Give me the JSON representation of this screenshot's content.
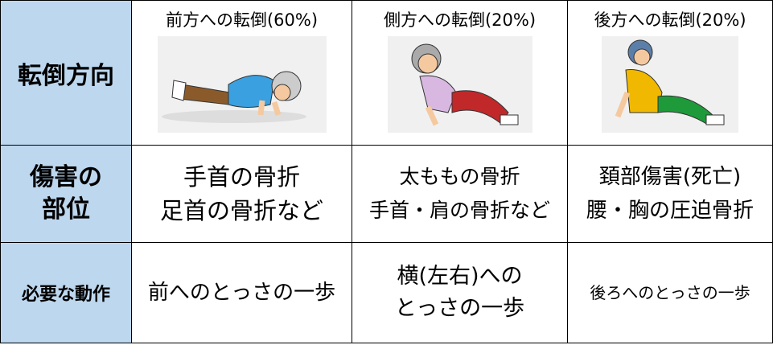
{
  "table": {
    "rows": [
      [
        [
          "転倒方向"
        ],
        [
          "前方への転倒(60%)"
        ],
        [
          "側方への転倒(20%)"
        ],
        [
          "後方への転倒(20%)"
        ]
      ],
      [
        [
          "傷害の",
          "部位"
        ],
        [
          "手首の骨折",
          "足首の骨折など"
        ],
        [
          "太ももの骨折",
          "手首・肩の骨折など"
        ],
        [
          "頚部傷害(死亡)",
          "腰・胸の圧迫骨折"
        ]
      ],
      [
        [
          "必要な動作"
        ],
        [
          "前へのとっさの一歩"
        ],
        [
          "横(左右)への",
          "とっさの一歩"
        ],
        [
          "後ろへのとっさの一歩"
        ]
      ]
    ]
  }
}
